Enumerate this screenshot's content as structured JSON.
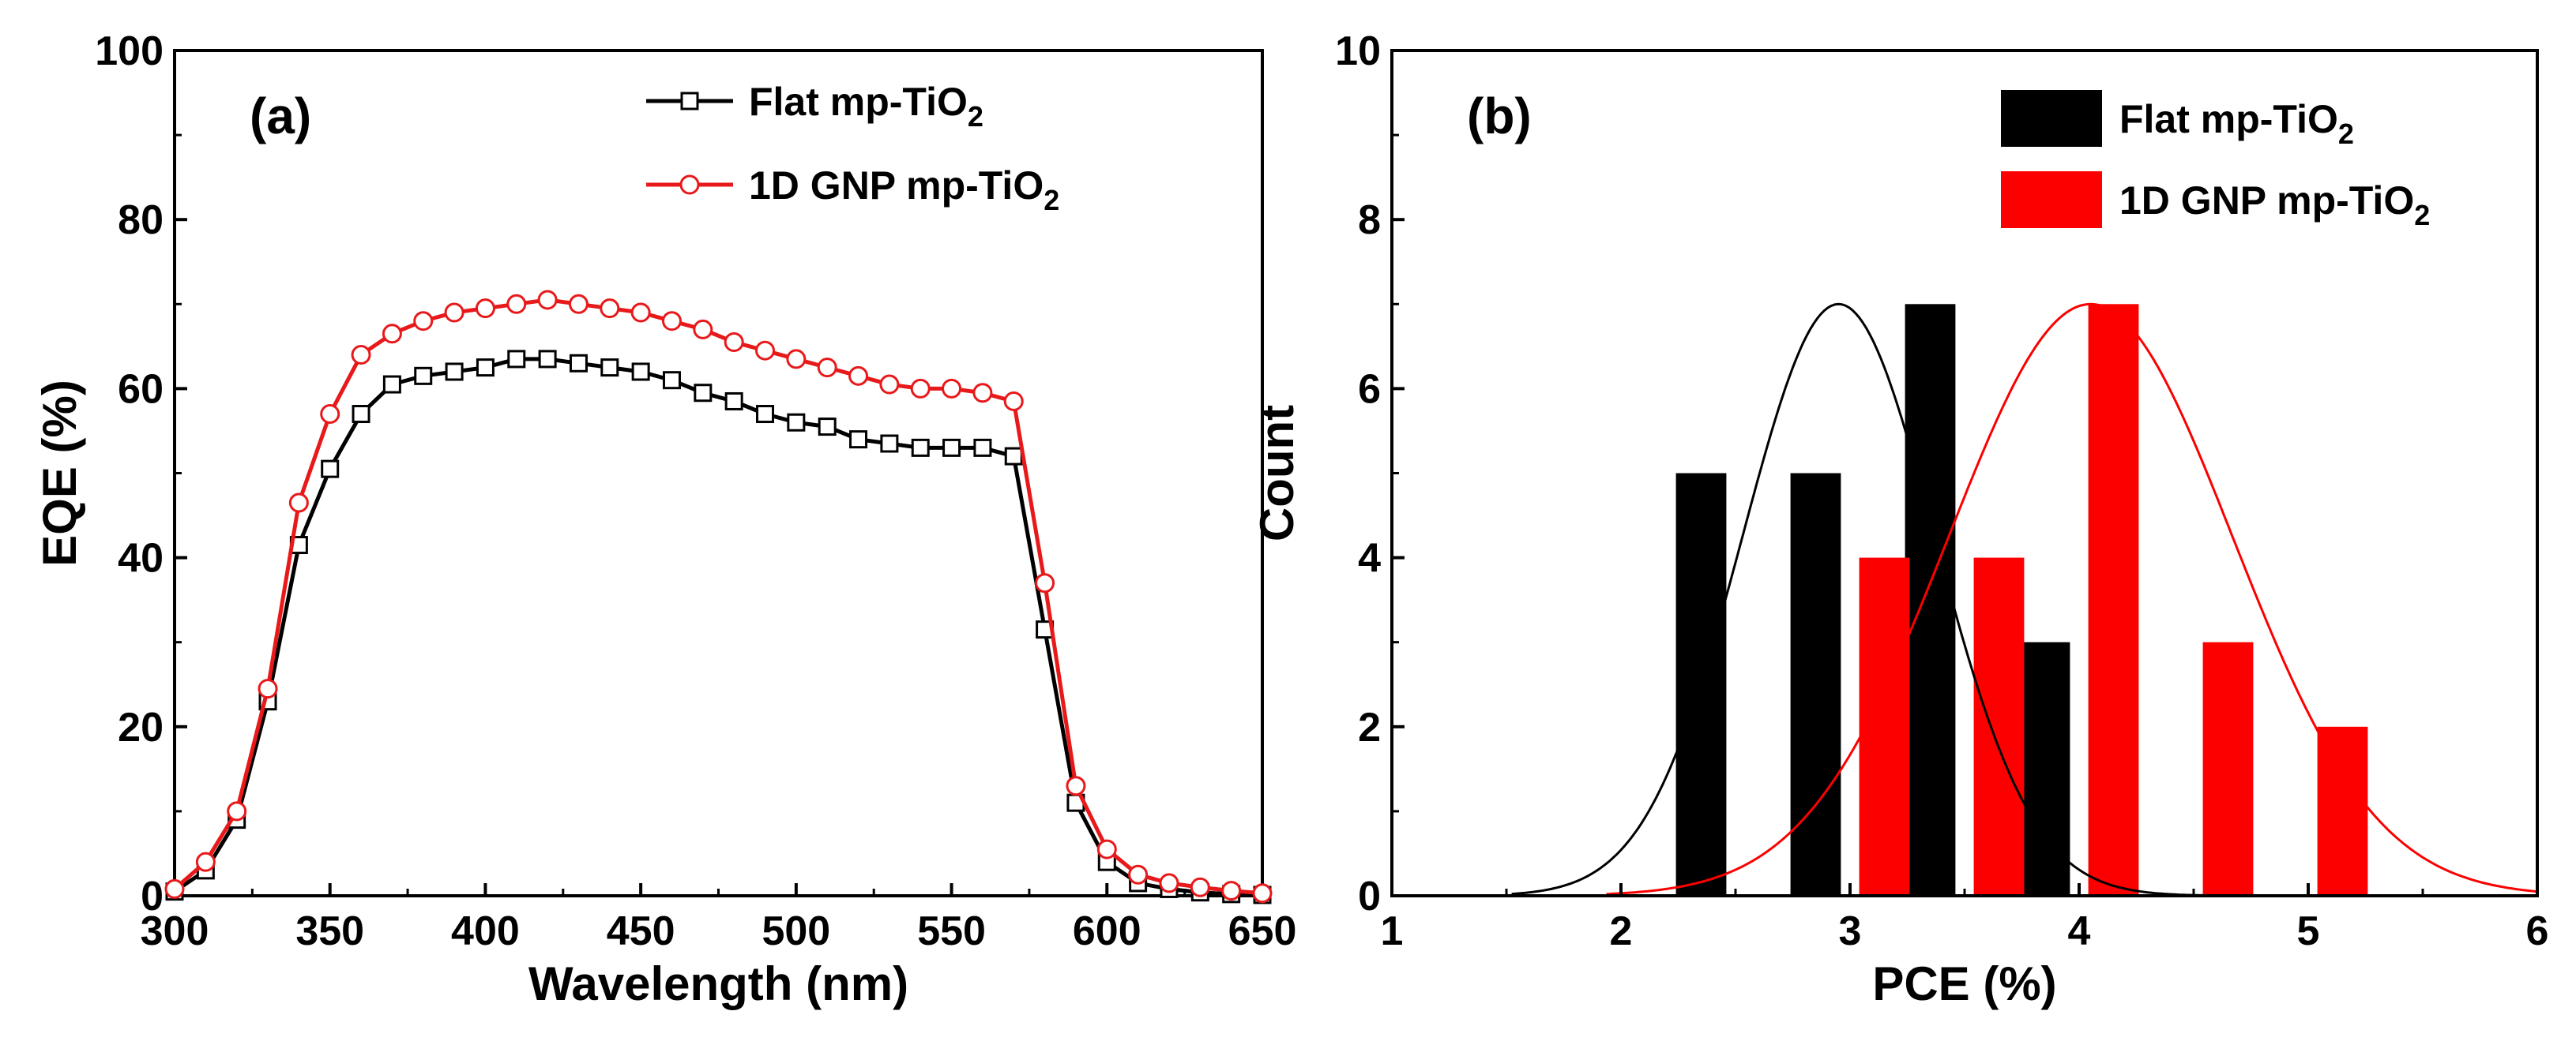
{
  "chart_data": [
    {
      "panel": "(a)",
      "type": "line",
      "xlabel": "Wavelength (nm)",
      "ylabel": "EQE (%)",
      "xlim": [
        300,
        650
      ],
      "ylim": [
        0,
        100
      ],
      "xticks": [
        300,
        350,
        400,
        450,
        500,
        550,
        600,
        650
      ],
      "yticks": [
        0,
        20,
        40,
        60,
        80,
        100
      ],
      "legend": "top-right",
      "x": [
        300,
        310,
        320,
        330,
        340,
        350,
        360,
        370,
        380,
        390,
        400,
        410,
        420,
        430,
        440,
        450,
        460,
        470,
        480,
        490,
        500,
        510,
        520,
        530,
        540,
        550,
        560,
        570,
        580,
        590,
        600,
        610,
        620,
        630,
        640,
        650
      ],
      "series": [
        {
          "name": "Flat mp-TiO",
          "sub": "2",
          "color": "#000000",
          "marker": "square",
          "values": [
            0.5,
            3,
            9,
            23,
            41.5,
            50.5,
            57,
            60.5,
            61.5,
            62,
            62.5,
            63.5,
            63.5,
            63,
            62.5,
            62,
            61,
            59.5,
            58.5,
            57,
            56,
            55.5,
            54,
            53.5,
            53,
            53,
            53,
            52,
            31.5,
            11,
            4,
            1.5,
            0.8,
            0.4,
            0.2,
            0.1
          ]
        },
        {
          "name": "1D GNP mp-TiO",
          "sub": "2",
          "color": "#e8191a",
          "marker": "circle",
          "values": [
            0.8,
            4,
            10,
            24.5,
            46.5,
            57,
            64,
            66.5,
            68,
            69,
            69.5,
            70,
            70.5,
            70,
            69.5,
            69,
            68,
            67,
            65.5,
            64.5,
            63.5,
            62.5,
            61.5,
            60.5,
            60,
            60,
            59.5,
            58.5,
            37,
            13,
            5.5,
            2.5,
            1.5,
            1,
            0.6,
            0.3
          ]
        }
      ]
    },
    {
      "panel": "(b)",
      "type": "bar",
      "xlabel": "PCE (%)",
      "ylabel": "Count",
      "xlim": [
        1,
        6
      ],
      "ylim": [
        0,
        10
      ],
      "xticks": [
        1,
        2,
        3,
        4,
        5,
        6
      ],
      "yticks": [
        0,
        2,
        4,
        6,
        8,
        10
      ],
      "legend": "top-right",
      "bar_width": 0.22,
      "series": [
        {
          "name": "Flat mp-TiO",
          "sub": "2",
          "color": "#000000",
          "centers": [
            2.35,
            2.85,
            3.35,
            3.85
          ],
          "values": [
            5,
            5,
            7,
            3
          ],
          "fit": {
            "type": "gaussian",
            "peak": 7,
            "center": 2.95,
            "sigma": 0.42
          }
        },
        {
          "name": "1D GNP mp-TiO",
          "sub": "2",
          "color": "#fc0000",
          "centers": [
            3.15,
            3.65,
            4.15,
            4.65,
            5.15
          ],
          "values": [
            4,
            4,
            7,
            3,
            2
          ],
          "fit": {
            "type": "gaussian",
            "peak": 7,
            "center": 4.05,
            "sigma": 0.62
          }
        }
      ]
    }
  ]
}
